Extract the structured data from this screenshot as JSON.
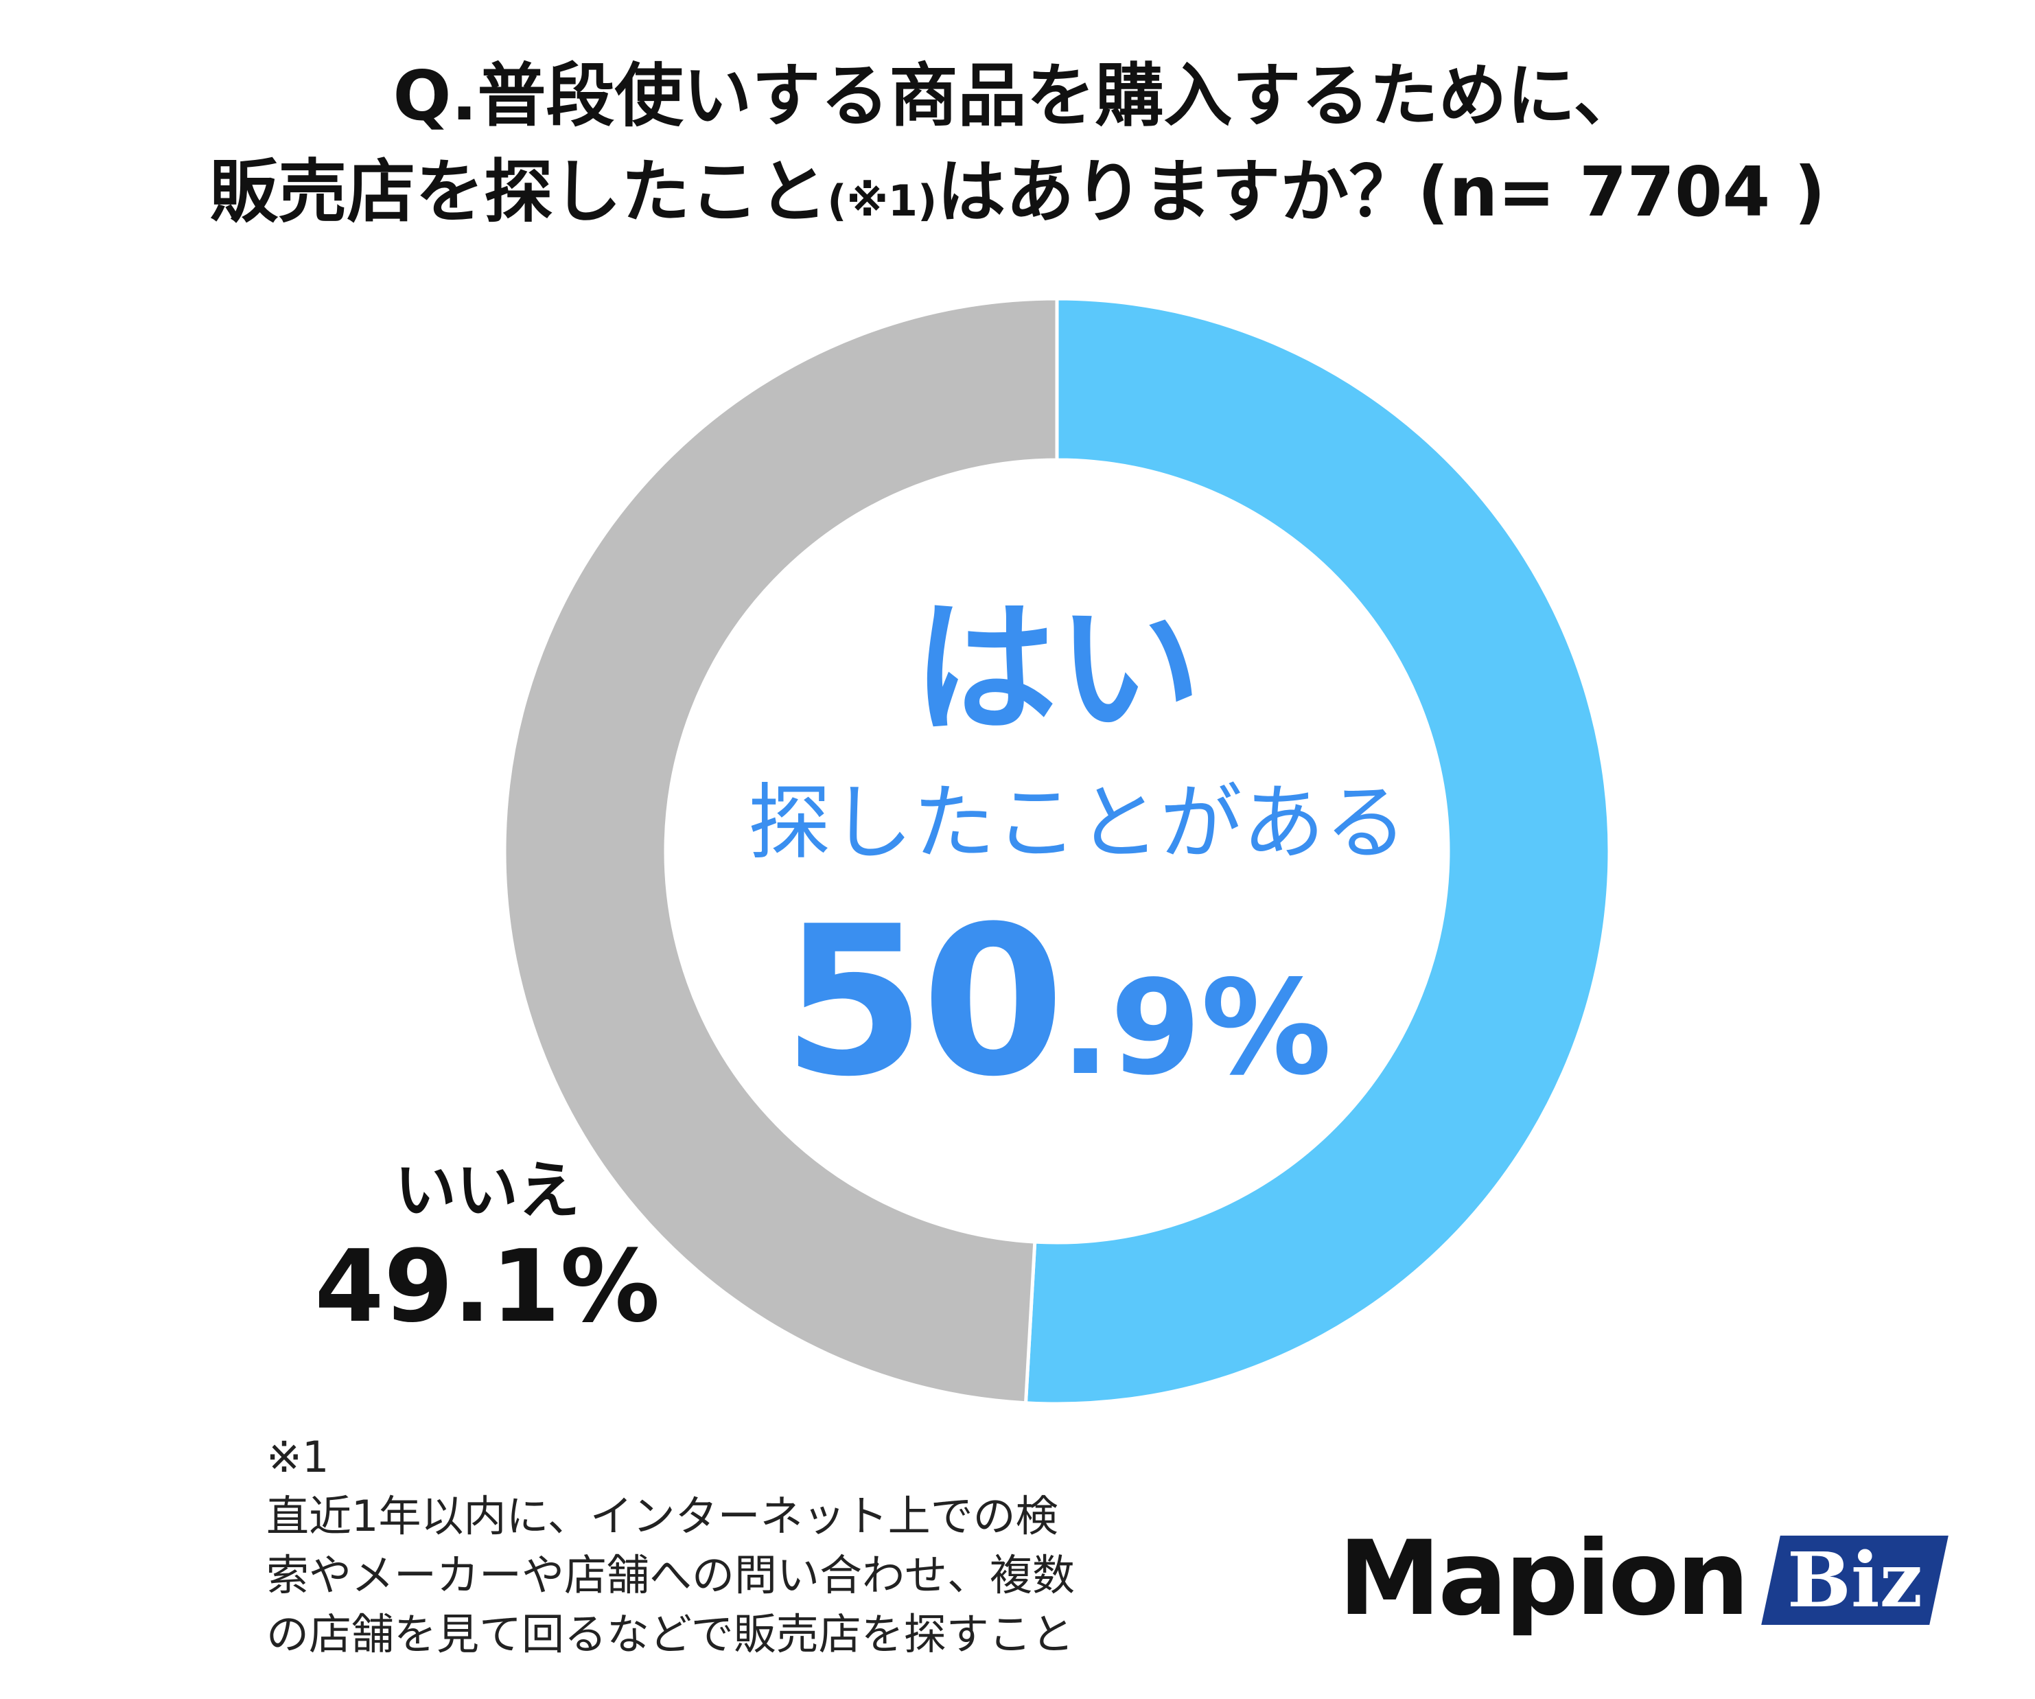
{
  "title": {
    "line1": "Q.普段使いする商品を購入するために、",
    "line2_pre": "販売店を探したこと",
    "line2_ref": "(※1)",
    "line2_post": "はありますか？(n= 7704 )"
  },
  "chart_data": {
    "type": "pie",
    "style": "donut",
    "title": "Q.普段使いする商品を購入するために、販売店を探したこと(※1)はありますか？(n= 7704 )",
    "n": 7704,
    "series": [
      {
        "name": "はい",
        "value": 50.9,
        "color": "#5bc8fb"
      },
      {
        "name": "いいえ",
        "value": 49.1,
        "color": "#bebebe"
      }
    ]
  },
  "labels": {
    "yes": {
      "name": "はい",
      "sub": "探したことがある",
      "value_int": "50",
      "value_dec": ".9%"
    },
    "no": {
      "name": "いいえ",
      "value": "49.1%"
    }
  },
  "footnote": {
    "mark": "※1",
    "lines": [
      "直近1年以内に、インターネット上での検",
      "索やメーカーや店舗への問い合わせ、複数",
      "の店舗を見て回るなどで販売店を探すこと"
    ]
  },
  "logo": {
    "text": "Mapion",
    "badge": "Biz",
    "badge_color": "#1a3d8f"
  },
  "colors": {
    "accent_text": "#3a8ff0",
    "yes_slice": "#5bc8fb",
    "no_slice": "#bebebe"
  }
}
